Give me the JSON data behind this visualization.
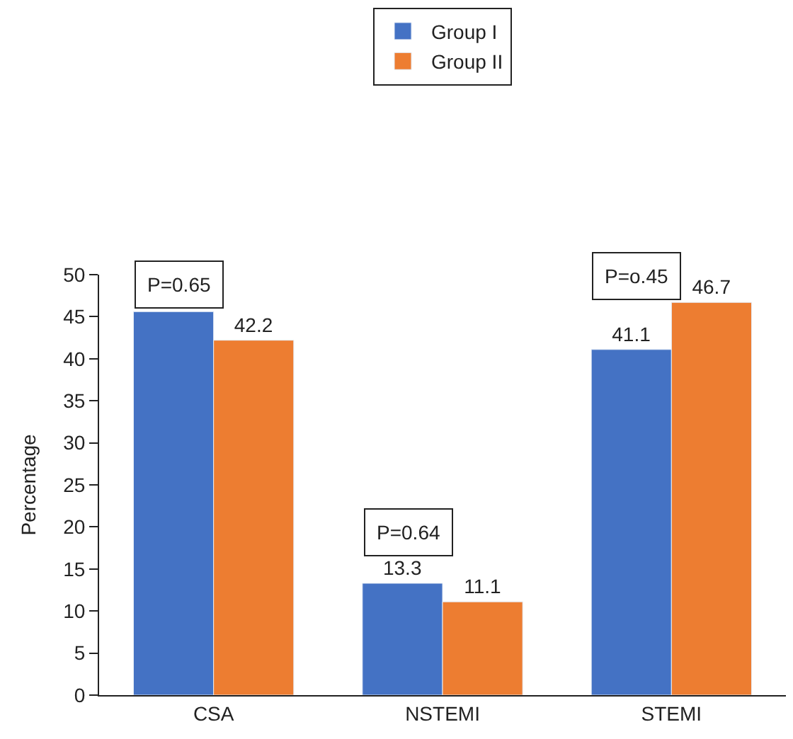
{
  "chart_data": {
    "type": "bar",
    "ylabel": "Percentage",
    "categories": [
      "CSA",
      "NSTEMI",
      "STEMI"
    ],
    "series": [
      {
        "name": "Group I",
        "color": "#4472c4",
        "values": [
          45.6,
          13.3,
          41.1
        ],
        "value_labels": [
          null,
          "13.3",
          "41.1"
        ]
      },
      {
        "name": "Group II",
        "color": "#ed7d31",
        "values": [
          42.2,
          11.1,
          46.7
        ],
        "value_labels": [
          "42.2",
          "11.1",
          "46.7"
        ]
      }
    ],
    "ylim": [
      0,
      50
    ],
    "yticks": [
      0,
      5,
      10,
      15,
      20,
      25,
      30,
      35,
      40,
      45,
      50
    ],
    "legend": "top",
    "annotations": [
      "P=0.65",
      "P=0.64",
      "P=o.45"
    ]
  }
}
